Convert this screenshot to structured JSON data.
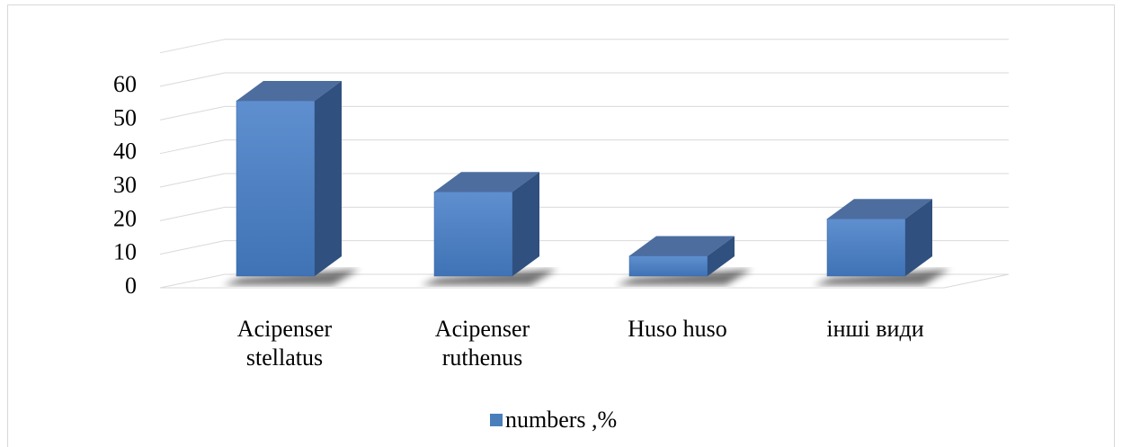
{
  "chart_data": {
    "type": "bar3d",
    "categories": [
      "Acipenser stellatus",
      "Acipenser ruthenus",
      "Huso huso",
      "інші види"
    ],
    "series": [
      {
        "name": "numbers ,%",
        "color": "#4a7ebb",
        "values": [
          52,
          25,
          6,
          17
        ]
      }
    ],
    "ylim": [
      0,
      70
    ],
    "yticks": [
      0,
      10,
      20,
      30,
      40,
      50,
      60
    ],
    "grid": true,
    "legend": "bottom"
  }
}
